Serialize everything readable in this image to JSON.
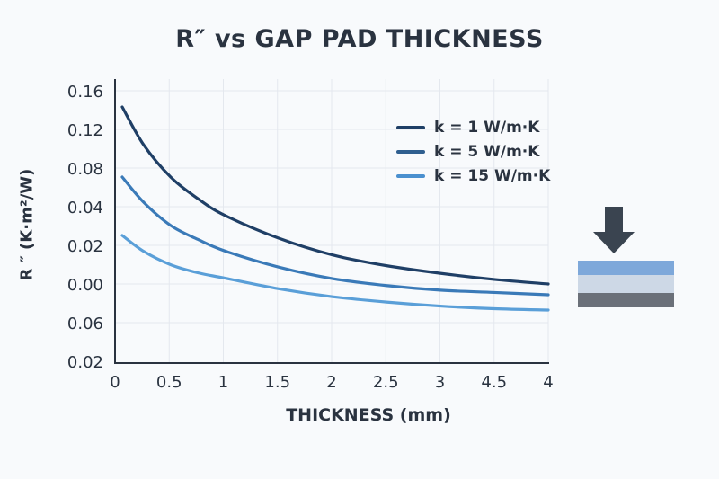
{
  "chart_data": {
    "type": "line",
    "title": "R″ vs GAP PAD THICKNESS",
    "xlabel": "THICKNESS (mm)",
    "ylabel": "R ″ (K·m²/W)",
    "x_tick_labels": [
      "0",
      "0.5",
      "1",
      "1.5",
      "2",
      "2.5",
      "3",
      "4.5",
      "4"
    ],
    "y_tick_labels": [
      "0.16",
      "0.12",
      "0.08",
      "0.04",
      "0.02",
      "0.00",
      "0.06",
      "0.02"
    ],
    "xlim": [
      0,
      4
    ],
    "grid": true,
    "legend_position": "upper right",
    "x": [
      0.05,
      0.25,
      0.5,
      0.75,
      1.0,
      1.5,
      2.0,
      2.5,
      3.0,
      3.5,
      4.0
    ],
    "series": [
      {
        "name": "k = 1 W/m·K",
        "color": "#1f3f66",
        "values": [
          0.143,
          0.118,
          0.097,
          0.083,
          0.072,
          0.057,
          0.046,
          0.039,
          0.034,
          0.03,
          0.027
        ]
      },
      {
        "name": "k = 5 W/m·K",
        "color": "#3a7ab8",
        "values": [
          0.071,
          0.06,
          0.05,
          0.044,
          0.039,
          0.032,
          0.027,
          0.024,
          0.022,
          0.021,
          0.02
        ]
      },
      {
        "name": "k = 15 W/m·K",
        "color": "#5a9fd8",
        "values": [
          0.028,
          0.022,
          0.017,
          0.014,
          0.012,
          0.008,
          0.005,
          0.003,
          0.0015,
          0.0005,
          0.0
        ]
      }
    ]
  },
  "labels": {
    "title": "R″ vs GAP PAD THICKNESS",
    "xlabel": "THICKNESS (mm)",
    "ylabel": "R ″ (K·m²/W)"
  },
  "legend": [
    {
      "label": "k = 1 W/m·K",
      "color": "#1f3f66"
    },
    {
      "label": "k = 5 W/m·K",
      "color": "#2f5f8f"
    },
    {
      "label": "k = 15 W/m·K",
      "color": "#4a90cf"
    }
  ],
  "pad_graphic": {
    "arrow_color": "#3a4450",
    "layers": [
      {
        "name": "top",
        "color": "#7ea8da"
      },
      {
        "name": "middle",
        "color": "#cdd8e6"
      },
      {
        "name": "bottom",
        "color": "#6b7079"
      }
    ]
  }
}
